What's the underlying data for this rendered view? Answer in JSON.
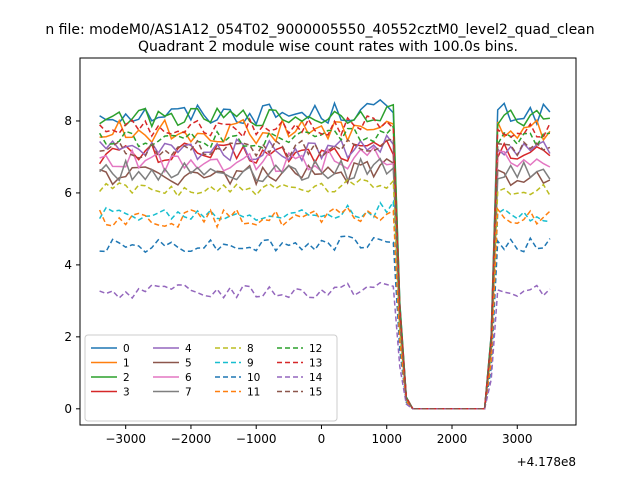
{
  "chart_data": {
    "type": "line",
    "suptitle": "n file: modeM0/AS1A12_054T02_9000005550_40552cztM0_level2_quad_clean",
    "title": "Quadrant 2 module wise count rates with 100.0s bins.",
    "xlabel": "",
    "ylabel": "",
    "offset_label": "+4.178e8",
    "xlim": [
      -3700,
      3900
    ],
    "ylim": [
      -0.45,
      9.75
    ],
    "xticks": [
      -3000,
      -2000,
      -1000,
      0,
      1000,
      2000,
      3000
    ],
    "xtick_labels": [
      "−3000",
      "−2000",
      "−1000",
      "0",
      "1000",
      "2000",
      "3000"
    ],
    "yticks": [
      0,
      2,
      4,
      6,
      8
    ],
    "ytick_labels": [
      "0",
      "2",
      "4",
      "6",
      "8"
    ],
    "grid": false,
    "legend_position": "lower-left",
    "legend_columns": 4,
    "x": {
      "start": -3400,
      "end": 3550,
      "step": 100
    },
    "series": [
      {
        "name": "0",
        "color": "#1f77b4",
        "style": "solid",
        "level": 8.2,
        "amp": 0.3
      },
      {
        "name": "1",
        "color": "#ff7f0e",
        "style": "solid",
        "level": 7.7,
        "amp": 0.35
      },
      {
        "name": "2",
        "color": "#2ca02c",
        "style": "solid",
        "level": 8.1,
        "amp": 0.25
      },
      {
        "name": "3",
        "color": "#d62728",
        "style": "solid",
        "level": 7.1,
        "amp": 0.3
      },
      {
        "name": "4",
        "color": "#9467bd",
        "style": "solid",
        "level": 7.2,
        "amp": 0.3
      },
      {
        "name": "5",
        "color": "#8c564b",
        "style": "solid",
        "level": 6.5,
        "amp": 0.3
      },
      {
        "name": "6",
        "color": "#e377c2",
        "style": "solid",
        "level": 6.9,
        "amp": 0.3
      },
      {
        "name": "7",
        "color": "#7f7f7f",
        "style": "solid",
        "level": 6.6,
        "amp": 0.3
      },
      {
        "name": "8",
        "color": "#bcbd22",
        "style": "dashed",
        "level": 6.1,
        "amp": 0.2
      },
      {
        "name": "9",
        "color": "#17becf",
        "style": "dashed",
        "level": 5.4,
        "amp": 0.2
      },
      {
        "name": "10",
        "color": "#1f77b4",
        "style": "dashed",
        "level": 4.55,
        "amp": 0.2
      },
      {
        "name": "11",
        "color": "#ff7f0e",
        "style": "dashed",
        "level": 5.3,
        "amp": 0.25
      },
      {
        "name": "12",
        "color": "#2ca02c",
        "style": "dashed",
        "level": 7.5,
        "amp": 0.25
      },
      {
        "name": "13",
        "color": "#d62728",
        "style": "dashed",
        "level": 7.8,
        "amp": 0.25
      },
      {
        "name": "14",
        "color": "#9467bd",
        "style": "dashed",
        "level": 3.25,
        "amp": 0.2
      },
      {
        "name": "15",
        "color": "#8c564b",
        "style": "dashed",
        "level": 7.2,
        "amp": 0.25
      }
    ],
    "gap": {
      "drop_start": 1100,
      "zero_from": 1350,
      "zero_to": 2500,
      "rise_end": 2700,
      "end_drop": 3550
    }
  }
}
